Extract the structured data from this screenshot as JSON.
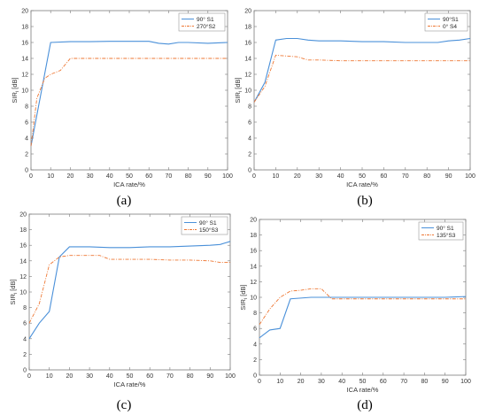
{
  "colors": {
    "series_a": "#4a90d9",
    "series_b": "#ee7733",
    "axis": "#7a7a7a"
  },
  "chart_data": [
    {
      "id": "a",
      "caption": "(a)",
      "type": "line",
      "xlabel": "ICA rate/%",
      "ylabel": "SIR_i [dB]",
      "xlim": [
        0,
        100
      ],
      "ylim": [
        0,
        20
      ],
      "xticks": [
        0,
        10,
        20,
        30,
        40,
        50,
        60,
        70,
        80,
        90,
        100
      ],
      "yticks": [
        0,
        2,
        4,
        6,
        8,
        10,
        12,
        14,
        16,
        18,
        20
      ],
      "grid": false,
      "legend_position": "top-right",
      "series": [
        {
          "name": "90° S1",
          "style": "solid",
          "x": [
            0,
            10,
            20,
            30,
            40,
            50,
            60,
            65,
            70,
            75,
            80,
            90,
            100
          ],
          "y": [
            3,
            16,
            16.1,
            16.1,
            16.15,
            16.15,
            16.15,
            15.9,
            15.8,
            16,
            16,
            15.9,
            16
          ]
        },
        {
          "name": "270°S2",
          "style": "dashdot",
          "x": [
            0,
            3,
            7,
            10,
            15,
            20,
            30,
            40,
            50,
            60,
            70,
            80,
            90,
            100
          ],
          "y": [
            3,
            9,
            11.5,
            12,
            12.5,
            14,
            14,
            14,
            14,
            14,
            14,
            14,
            14,
            14
          ]
        }
      ]
    },
    {
      "id": "b",
      "caption": "(b)",
      "type": "line",
      "xlabel": "ICA rate/%",
      "ylabel": "SIR_i [dB]",
      "xlim": [
        0,
        100
      ],
      "ylim": [
        0,
        20
      ],
      "xticks": [
        0,
        10,
        20,
        30,
        40,
        50,
        60,
        70,
        80,
        90,
        100
      ],
      "yticks": [
        0,
        2,
        4,
        6,
        8,
        10,
        12,
        14,
        16,
        18,
        20
      ],
      "grid": false,
      "legend_position": "top-right",
      "series": [
        {
          "name": "90°S1",
          "style": "solid",
          "x": [
            0,
            5,
            10,
            15,
            20,
            25,
            30,
            40,
            50,
            60,
            70,
            80,
            85,
            90,
            95,
            100
          ],
          "y": [
            8.5,
            11,
            16.3,
            16.5,
            16.5,
            16.3,
            16.2,
            16.2,
            16.1,
            16.1,
            16,
            16,
            16,
            16.2,
            16.3,
            16.5
          ]
        },
        {
          "name": "0° S4",
          "style": "dashdot",
          "x": [
            0,
            5,
            10,
            15,
            20,
            25,
            30,
            40,
            50,
            60,
            70,
            80,
            90,
            100
          ],
          "y": [
            8.5,
            10.5,
            14.4,
            14.3,
            14.2,
            13.8,
            13.8,
            13.7,
            13.7,
            13.7,
            13.7,
            13.7,
            13.7,
            13.7
          ]
        }
      ]
    },
    {
      "id": "c",
      "caption": "(c)",
      "type": "line",
      "xlabel": "ICA rate/%",
      "ylabel": "SIR_i [dB]",
      "xlim": [
        0,
        100
      ],
      "ylim": [
        0,
        20
      ],
      "xticks": [
        0,
        10,
        20,
        30,
        40,
        50,
        60,
        70,
        80,
        90,
        100
      ],
      "yticks": [
        0,
        2,
        4,
        6,
        8,
        10,
        12,
        14,
        16,
        18,
        20
      ],
      "grid": false,
      "legend_position": "top-right",
      "series": [
        {
          "name": "90° S1",
          "style": "solid",
          "x": [
            0,
            5,
            10,
            15,
            20,
            30,
            40,
            50,
            60,
            70,
            80,
            90,
            95,
            100
          ],
          "y": [
            4,
            6,
            7.5,
            14.5,
            15.8,
            15.8,
            15.7,
            15.7,
            15.8,
            15.8,
            15.9,
            16,
            16.1,
            16.5
          ]
        },
        {
          "name": "150°S3",
          "style": "dashdot",
          "x": [
            0,
            5,
            10,
            15,
            20,
            30,
            35,
            40,
            50,
            60,
            70,
            80,
            90,
            95,
            100
          ],
          "y": [
            6,
            8.5,
            13.5,
            14.5,
            14.7,
            14.7,
            14.7,
            14.2,
            14.2,
            14.2,
            14.1,
            14.1,
            14,
            13.8,
            13.8
          ]
        }
      ]
    },
    {
      "id": "d",
      "caption": "(d)",
      "type": "line",
      "xlabel": "ICA rate/%",
      "ylabel": "SIR_i [dB]",
      "xlim": [
        0,
        100
      ],
      "ylim": [
        0,
        20
      ],
      "xticks": [
        0,
        10,
        20,
        30,
        40,
        50,
        60,
        70,
        80,
        90,
        100
      ],
      "yticks": [
        0,
        2,
        4,
        6,
        8,
        10,
        12,
        14,
        16,
        18,
        20
      ],
      "grid": false,
      "legend_position": "top-right",
      "series": [
        {
          "name": "90° S1",
          "style": "solid",
          "x": [
            0,
            5,
            10,
            15,
            20,
            25,
            30,
            35,
            40,
            50,
            60,
            70,
            80,
            90,
            100
          ],
          "y": [
            4.8,
            5.8,
            6,
            9.8,
            9.9,
            10,
            10,
            10,
            10,
            10,
            10,
            10,
            10,
            10,
            10.1
          ]
        },
        {
          "name": "135°S3",
          "style": "dashdot",
          "x": [
            0,
            5,
            10,
            15,
            20,
            25,
            30,
            35,
            40,
            50,
            60,
            70,
            80,
            90,
            100
          ],
          "y": [
            6.5,
            8.5,
            10,
            10.8,
            10.9,
            11.1,
            11.1,
            9.8,
            9.8,
            9.8,
            9.8,
            9.8,
            9.8,
            9.8,
            9.8
          ]
        }
      ]
    }
  ]
}
